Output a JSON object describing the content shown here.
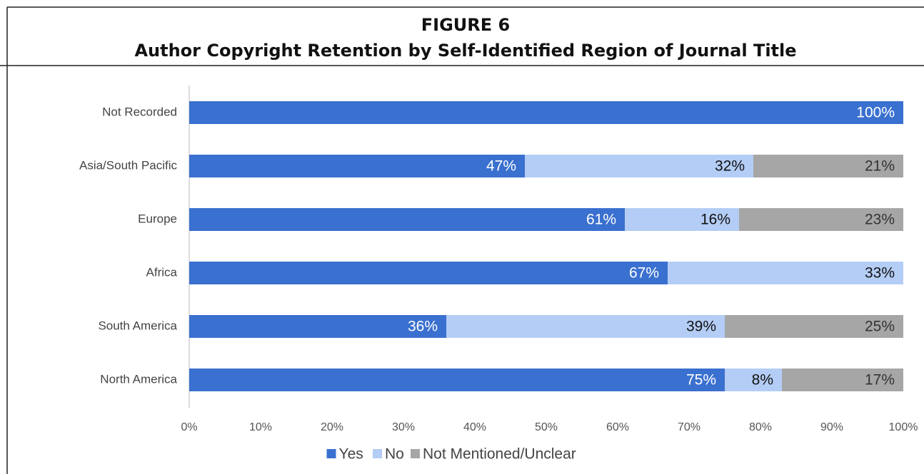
{
  "chart_data": {
    "type": "stacked_bar_horizontal",
    "figure_label": "FIGURE 6",
    "title": "Author Copyright Retention by Self-Identified Region of Journal Title",
    "categories": [
      "Not Recorded",
      "Asia/South Pacific",
      "Europe",
      "Africa",
      "South America",
      "North America"
    ],
    "series": [
      {
        "name": "Yes",
        "color": "#3a70cf",
        "values": [
          100,
          47,
          61,
          67,
          36,
          75
        ],
        "value_labels": [
          "100%",
          "47%",
          "61%",
          "67%",
          "36%",
          "75%"
        ],
        "label_color": "#ffffff"
      },
      {
        "name": "No",
        "color": "#b4cdf6",
        "values": [
          null,
          32,
          16,
          33,
          39,
          8
        ],
        "value_labels": [
          null,
          "32%",
          "16%",
          "33%",
          "39%",
          "8%"
        ],
        "label_color": "#111111"
      },
      {
        "name": "Not Mentioned/Unclear",
        "color": "#a6a6a6",
        "values": [
          null,
          21,
          23,
          null,
          25,
          17
        ],
        "value_labels": [
          null,
          "21%",
          "23%",
          null,
          "25%",
          "17%"
        ],
        "label_color": "#333333"
      }
    ],
    "xlim": [
      0,
      100
    ],
    "xticks": [
      {
        "value": 0,
        "label": "0%"
      },
      {
        "value": 10,
        "label": "10%"
      },
      {
        "value": 20,
        "label": "20%"
      },
      {
        "value": 30,
        "label": "30%"
      },
      {
        "value": 40,
        "label": "40%"
      },
      {
        "value": 50,
        "label": "50%"
      },
      {
        "value": 60,
        "label": "60%"
      },
      {
        "value": 70,
        "label": "70%"
      },
      {
        "value": 80,
        "label": "80%"
      },
      {
        "value": 90,
        "label": "90%"
      },
      {
        "value": 100,
        "label": "100%"
      }
    ],
    "legend": "bottom"
  }
}
